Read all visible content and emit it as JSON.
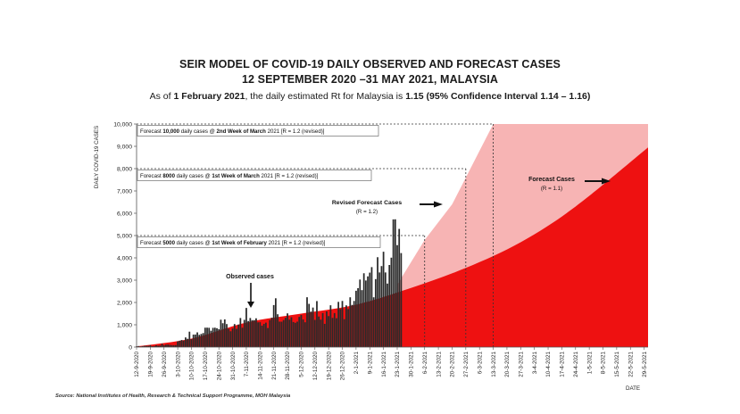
{
  "header": {
    "title_line1": "SEIR MODEL OF COVID-19 DAILY OBSERVED AND FORECAST CASES",
    "title_line2": "12 SEPTEMBER 2020 –31 MAY 2021, MALAYSIA",
    "subtitle_prefix": "As of ",
    "subtitle_date": "1 February 2021",
    "subtitle_mid": ", the daily estimated Rt for Malaysia is ",
    "subtitle_value": "1.15 (95% Confidence Interval 1.14 – 1.16)"
  },
  "source": "Source: National Institutes of Health, Research & Technical Support Programme, MOH Malaysia",
  "chart_data": {
    "type": "bar",
    "xlabel": "DATE",
    "ylabel": "DAILY COVID-19 CASES",
    "ylim": [
      0,
      10000
    ],
    "yticks": [
      0,
      1000,
      2000,
      3000,
      4000,
      5000,
      6000,
      7000,
      8000,
      9000,
      10000
    ],
    "ytick_labels": [
      "0",
      "1,000",
      "2,000",
      "3,000",
      "4,000",
      "5,000",
      "6,000",
      "7,000",
      "8,000",
      "9,000",
      "10,000"
    ],
    "xlim": [
      "2020-09-12",
      "2021-05-31"
    ],
    "xtick_labels": [
      "12-9-2020",
      "19-9-2020",
      "26-9-2020",
      "3-10-2020",
      "10-10-2020",
      "17-10-2020",
      "24-10-2020",
      "31-10-2020",
      "7-11-2020",
      "14-11-2020",
      "21-11-2020",
      "28-11-2020",
      "5-12-2020",
      "12-12-2020",
      "19-12-2020",
      "26-12-2020",
      "2-1-2021",
      "9-1-2021",
      "16-1-2021",
      "23-1-2021",
      "30-1-2021",
      "6-2-2021",
      "13-2-2021",
      "20-2-2021",
      "27-2-2021",
      "6-3-2021",
      "13-3-2021",
      "20-3-2021",
      "27-3-2021",
      "3-4-2021",
      "10-4-2021",
      "17-4-2021",
      "24-4-2021",
      "1-5-2021",
      "8-5-2021",
      "15-5-2021",
      "22-5-2021",
      "29-5-2021"
    ],
    "colors": {
      "forecast_r11": "#ee1111",
      "forecast_r12": "#f7b4b4",
      "observed_bars": "#2a2a2a",
      "annotation_box": "#555555"
    },
    "series": [
      {
        "name": "Observed cases",
        "kind": "bar",
        "x_start": "2020-09-12",
        "x_step_days": 1,
        "values": [
          32,
          47,
          26,
          42,
          57,
          54,
          56,
          84,
          38,
          45,
          82,
          61,
          71,
          147,
          82,
          110,
          115,
          101,
          89,
          85,
          89,
          260,
          287,
          317,
          293,
          432,
          373,
          691,
          354,
          561,
          563,
          660,
          549,
          589,
          629,
          869,
          871,
          865,
          732,
          862,
          869,
          846,
          801,
          1228,
          1070,
          1240,
          1032,
          823,
          710,
          835,
          1032,
          818,
          1009,
          1304,
          869,
          1223,
          1755,
          1168,
          1304,
          1208,
          1210,
          1290,
          1109,
          1114,
          960,
          1041,
          1096,
          854,
          1212,
          1315,
          1884,
          2188,
          1472,
          1141,
          1138,
          1212,
          1315,
          1511,
          1229,
          1337,
          1123,
          1088,
          1141,
          1353,
          1439,
          1237,
          1112,
          2234,
          1937,
          1589,
          1772,
          1220,
          2062,
          1371,
          1229,
          1526,
          1041,
          1599,
          1390,
          1874,
          1309,
          1525,
          1295,
          2027,
          1704,
          2068,
          1251,
          1870,
          1704,
          2232,
          1890,
          2068,
          2525,
          2643,
          3027,
          2553,
          3309,
          2985,
          3170,
          3337,
          3585,
          2232,
          3048,
          4029,
          3346,
          3631,
          4275,
          3346,
          2848,
          3680,
          4008,
          5725,
          5728,
          4571,
          5298,
          4214
        ]
      },
      {
        "name": "Forecast Cases",
        "kind": "area",
        "annotation": "(R = 1.1)",
        "points": [
          [
            "2020-09-12",
            30
          ],
          [
            "2020-10-10",
            380
          ],
          [
            "2020-11-07",
            1100
          ],
          [
            "2020-12-05",
            1500
          ],
          [
            "2021-01-02",
            1900
          ],
          [
            "2021-01-30",
            2650
          ],
          [
            "2021-02-27",
            3550
          ],
          [
            "2021-03-27",
            4700
          ],
          [
            "2021-04-24",
            6300
          ],
          [
            "2021-05-31",
            8950
          ]
        ]
      },
      {
        "name": "Revised Forecast Cases",
        "kind": "area",
        "annotation": "(R = 1.2)",
        "points": [
          [
            "2021-01-23",
            2800
          ],
          [
            "2021-02-06",
            4800
          ],
          [
            "2021-02-20",
            6400
          ],
          [
            "2021-03-06",
            8800
          ],
          [
            "2021-03-13",
            10000
          ]
        ]
      }
    ],
    "annotations": [
      {
        "text_pre": "Forecast ",
        "text_bold": "10,000",
        "text_mid": " daily cases @ ",
        "text_bold2": "2nd Week of March",
        "text_post": " 2021 [R = 1.2 (revised)]",
        "y": 10000,
        "x_end": "2021-03-13"
      },
      {
        "text_pre": "Forecast ",
        "text_bold": "8000",
        "text_mid": " daily cases @ ",
        "text_bold2": "1st Week of March",
        "text_post": " 2021 [R = 1.2 (revised)]",
        "y": 8000,
        "x_end": "2021-02-27"
      },
      {
        "text_pre": "Forecast ",
        "text_bold": "5000",
        "text_mid": " daily cases @ ",
        "text_bold2": "1st Week of February",
        "text_post": " 2021 [R = 1.2 (revised)]",
        "y": 5000,
        "x_end": "2021-02-06"
      }
    ],
    "labels": {
      "observed": "Observed cases",
      "revised": "Revised Forecast Cases",
      "revised_r": "(R = 1.2)",
      "forecast": "Forecast Cases",
      "forecast_r": "(R = 1.1)"
    }
  }
}
